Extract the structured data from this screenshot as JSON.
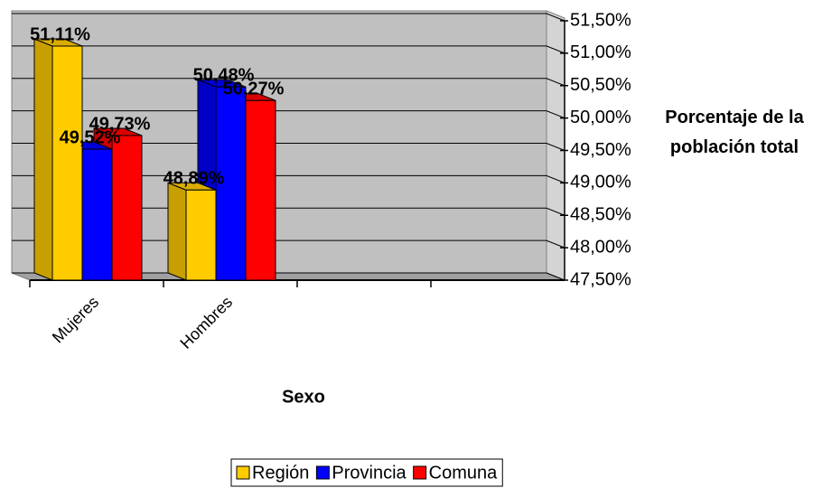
{
  "chart_data": {
    "type": "bar3d",
    "categories": [
      "Mujeres",
      "Hombres",
      null,
      null
    ],
    "series": [
      {
        "name": "Región",
        "color": "#ffcc00",
        "values": [
          51.11,
          48.89,
          null,
          null
        ],
        "value_labels": [
          "51,11%",
          "48,89%",
          null,
          null
        ]
      },
      {
        "name": "Provincia",
        "color": "#0000ff",
        "values": [
          49.52,
          50.48,
          null,
          null
        ],
        "value_labels": [
          "49,52%",
          "50,48%",
          null,
          null
        ]
      },
      {
        "name": "Comuna",
        "color": "#ff0000",
        "values": [
          49.73,
          50.27,
          null,
          null
        ],
        "value_labels": [
          "49,73%",
          "50,27%",
          null,
          null
        ]
      }
    ],
    "x_label": "Sexo",
    "y_label": "Porcentaje de la población total",
    "ylim": [
      47.5,
      51.5
    ],
    "yticks": [
      {
        "value": 47.5,
        "label": "47,50%"
      },
      {
        "value": 48,
        "label": "48,00%"
      },
      {
        "value": 48.5,
        "label": "48,50%"
      },
      {
        "value": 49,
        "label": "49,00%"
      },
      {
        "value": 49.5,
        "label": "49,50%"
      },
      {
        "value": 50,
        "label": "50,00%"
      },
      {
        "value": 50.5,
        "label": "50,50%"
      },
      {
        "value": 51,
        "label": "51,00%"
      },
      {
        "value": 51.5,
        "label": "51,50%"
      }
    ],
    "y_axis_side": "right",
    "grid": true,
    "legend": "bottom"
  }
}
